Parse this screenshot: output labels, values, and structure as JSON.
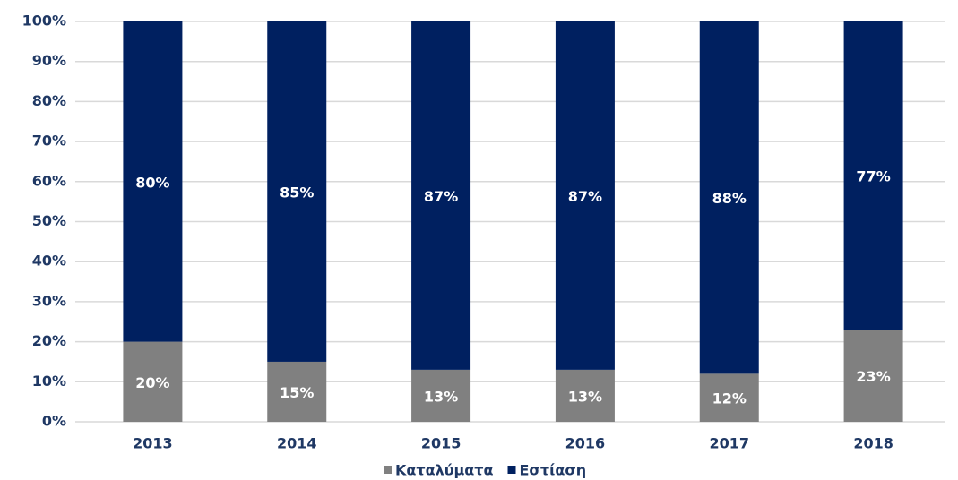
{
  "chart_data": {
    "type": "stacked_bar",
    "categories": [
      "2013",
      "2014",
      "2015",
      "2016",
      "2017",
      "2018"
    ],
    "series": [
      {
        "name": "Καταλύματα",
        "color": "#808080",
        "values": [
          20,
          15,
          13,
          13,
          12,
          23
        ],
        "value_labels": [
          "20%",
          "15%",
          "13%",
          "13%",
          "12%",
          "23%"
        ]
      },
      {
        "name": "Εστίαση",
        "color": "#002060",
        "values": [
          80,
          85,
          87,
          87,
          88,
          77
        ],
        "value_labels": [
          "80%",
          "85%",
          "87%",
          "87%",
          "88%",
          "77%"
        ]
      }
    ],
    "ylim": [
      0,
      100
    ],
    "yticks": [
      {
        "value": 0,
        "label": "0%"
      },
      {
        "value": 10,
        "label": "10%"
      },
      {
        "value": 20,
        "label": "20%"
      },
      {
        "value": 30,
        "label": "30%"
      },
      {
        "value": 40,
        "label": "40%"
      },
      {
        "value": 50,
        "label": "50%"
      },
      {
        "value": 60,
        "label": "60%"
      },
      {
        "value": 70,
        "label": "70%"
      },
      {
        "value": 80,
        "label": "80%"
      },
      {
        "value": 90,
        "label": "90%"
      },
      {
        "value": 100,
        "label": "100%"
      }
    ],
    "grid": true,
    "legend": "bottom"
  }
}
